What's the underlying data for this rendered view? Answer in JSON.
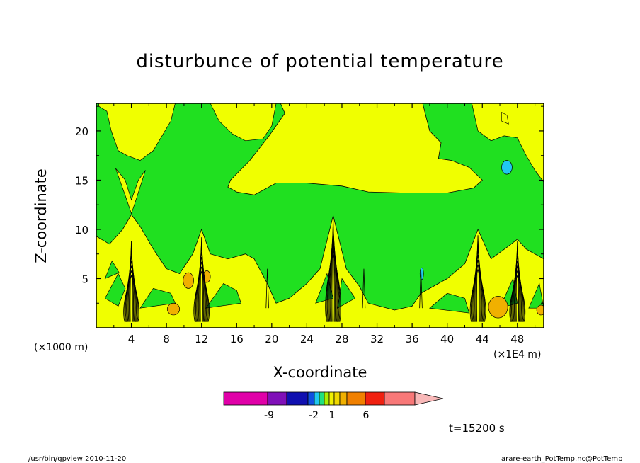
{
  "chart_data": {
    "type": "heatmap",
    "title": "disturbunce of potential temperature",
    "xlabel": "X-coordinate",
    "ylabel": "Z-coordinate",
    "x_unit_left": "(×1000 m)",
    "x_unit_right": "(×1E4 m)",
    "xlim": [
      0,
      51
    ],
    "ylim": [
      0,
      22.8
    ],
    "x_ticks": [
      "4",
      "8",
      "12",
      "16",
      "20",
      "24",
      "28",
      "32",
      "36",
      "40",
      "44",
      "48"
    ],
    "x_tick_values": [
      4,
      8,
      12,
      16,
      20,
      24,
      28,
      32,
      36,
      40,
      44,
      48
    ],
    "y_ticks": [
      "5",
      "10",
      "15",
      "20"
    ],
    "y_tick_values": [
      5,
      10,
      15,
      20
    ],
    "colorbar": {
      "colors": [
        "#e000a8",
        "#8010b8",
        "#1010b0",
        "#1050e0",
        "#20c8f0",
        "#20e080",
        "#a8f000",
        "#f0f000",
        "#f0d800",
        "#f0b000",
        "#f08000",
        "#f02010",
        "#f87878",
        "#f8b8b8"
      ],
      "labels": [
        "-9",
        "-2",
        "1",
        "6"
      ]
    },
    "region_colors": {
      "green": "#20e020",
      "yellow": "#f0ff00",
      "orange": "#f0b000",
      "cyan": "#20c8f0"
    },
    "plume_x": [
      4,
      12,
      27,
      43.5,
      48
    ]
  },
  "time_label": "t=15200 s",
  "footer_left": "/usr/bin/gpview   2010-11-20",
  "footer_right": "arare-earth_PotTemp.nc@PotTemp"
}
